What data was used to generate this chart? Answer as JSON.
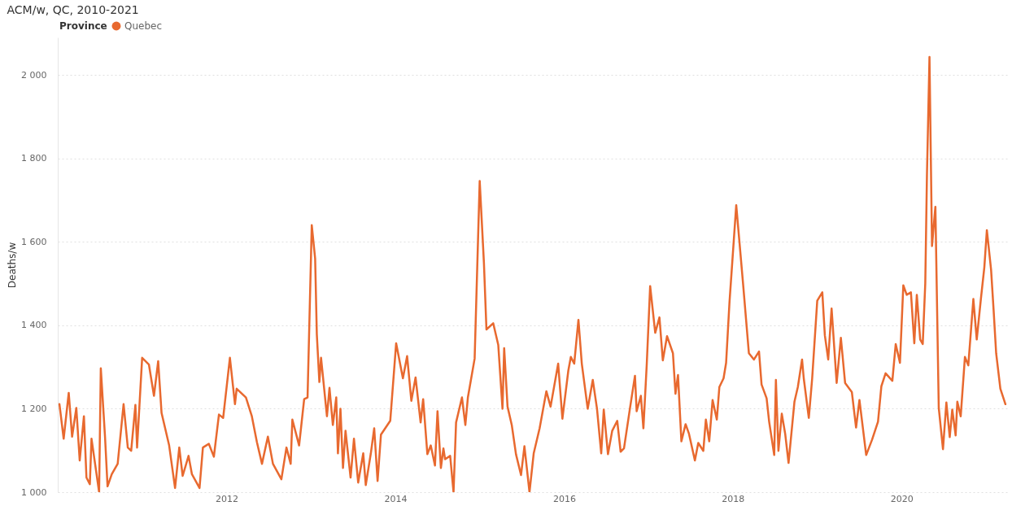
{
  "chart_data": {
    "type": "line",
    "title": "ACM/w, QC, 2010-2021",
    "ylabel": "Deaths/w",
    "legend_title": "Province",
    "legend": "top left",
    "grid": "y",
    "line_style": "solid",
    "marker": "none",
    "xlim": [
      2010,
      2021.25
    ],
    "xticks": [
      2012,
      2014,
      2016,
      2018,
      2020
    ],
    "ylim": [
      1000,
      2090
    ],
    "yticks": [
      {
        "value": 1000,
        "label": "1 000"
      },
      {
        "value": 1200,
        "label": "1 200"
      },
      {
        "value": 1400,
        "label": "1 400"
      },
      {
        "value": 1600,
        "label": "1 600"
      },
      {
        "value": 1800,
        "label": "1 800"
      },
      {
        "value": 2000,
        "label": "2 000"
      }
    ],
    "series": [
      {
        "name": "Quebec",
        "color": "#e8692f",
        "x": [
          2010.02,
          2010.07,
          2010.13,
          2010.17,
          2010.22,
          2010.26,
          2010.31,
          2010.34,
          2010.38,
          2010.4,
          2010.49,
          2010.51,
          2010.56,
          2010.59,
          2010.64,
          2010.71,
          2010.78,
          2010.83,
          2010.87,
          2010.92,
          2010.94,
          2011.0,
          2011.08,
          2011.14,
          2011.19,
          2011.23,
          2011.32,
          2011.39,
          2011.44,
          2011.48,
          2011.55,
          2011.59,
          2011.68,
          2011.72,
          2011.79,
          2011.85,
          2011.91,
          2011.96,
          2012.04,
          2012.1,
          2012.12,
          2012.23,
          2012.3,
          2012.36,
          2012.42,
          2012.49,
          2012.55,
          2012.65,
          2012.71,
          2012.76,
          2012.78,
          2012.86,
          2012.92,
          2012.96,
          2013.01,
          2013.05,
          2013.07,
          2013.1,
          2013.12,
          2013.19,
          2013.22,
          2013.26,
          2013.3,
          2013.32,
          2013.35,
          2013.38,
          2013.41,
          2013.47,
          2013.51,
          2013.56,
          2013.62,
          2013.65,
          2013.71,
          2013.75,
          2013.79,
          2013.83,
          2013.94,
          2014.01,
          2014.09,
          2014.14,
          2014.19,
          2014.24,
          2014.3,
          2014.33,
          2014.38,
          2014.42,
          2014.47,
          2014.5,
          2014.54,
          2014.57,
          2014.59,
          2014.65,
          2014.69,
          2014.72,
          2014.79,
          2014.83,
          2014.86,
          2014.94,
          2015.0,
          2015.05,
          2015.08,
          2015.16,
          2015.22,
          2015.27,
          2015.29,
          2015.33,
          2015.38,
          2015.43,
          2015.49,
          2015.53,
          2015.59,
          2015.64,
          2015.71,
          2015.79,
          2015.84,
          2015.93,
          2015.98,
          2016.05,
          2016.08,
          2016.12,
          2016.17,
          2016.21,
          2016.28,
          2016.34,
          2016.39,
          2016.44,
          2016.47,
          2016.52,
          2016.57,
          2016.63,
          2016.67,
          2016.71,
          2016.78,
          2016.84,
          2016.86,
          2016.91,
          2016.94,
          2016.98,
          2017.02,
          2017.08,
          2017.13,
          2017.17,
          2017.22,
          2017.29,
          2017.32,
          2017.35,
          2017.39,
          2017.44,
          2017.48,
          2017.55,
          2017.59,
          2017.65,
          2017.68,
          2017.72,
          2017.76,
          2017.81,
          2017.84,
          2017.89,
          2017.92,
          2017.96,
          2018.04,
          2018.08,
          2018.12,
          2018.19,
          2018.25,
          2018.31,
          2018.34,
          2018.4,
          2018.43,
          2018.49,
          2018.51,
          2018.54,
          2018.58,
          2018.62,
          2018.66,
          2018.73,
          2018.77,
          2018.82,
          2018.84,
          2018.9,
          2018.94,
          2019.0,
          2019.06,
          2019.09,
          2019.13,
          2019.17,
          2019.23,
          2019.28,
          2019.33,
          2019.41,
          2019.46,
          2019.5,
          2019.58,
          2019.65,
          2019.72,
          2019.76,
          2019.81,
          2019.89,
          2019.93,
          2019.98,
          2020.02,
          2020.06,
          2020.11,
          2020.15,
          2020.18,
          2020.22,
          2020.25,
          2020.28,
          2020.3,
          2020.33,
          2020.36,
          2020.4,
          2020.44,
          2020.49,
          2020.53,
          2020.57,
          2020.6,
          2020.64,
          2020.66,
          2020.7,
          2020.75,
          2020.79,
          2020.85,
          2020.89,
          2020.94,
          2020.98,
          2021.01,
          2021.06,
          2021.09,
          2021.12,
          2021.17,
          2021.23
        ],
        "values": [
          1211,
          1128,
          1238,
          1133,
          1202,
          1076,
          1182,
          1035,
          1019,
          1128,
          1000,
          1297,
          1133,
          1014,
          1043,
          1068,
          1211,
          1107,
          1099,
          1209,
          1107,
          1322,
          1306,
          1231,
          1314,
          1190,
          1112,
          1010,
          1107,
          1039,
          1087,
          1043,
          1010,
          1107,
          1116,
          1085,
          1186,
          1178,
          1322,
          1211,
          1248,
          1227,
          1182,
          1120,
          1068,
          1133,
          1068,
          1031,
          1107,
          1068,
          1174,
          1112,
          1223,
          1227,
          1640,
          1560,
          1378,
          1264,
          1322,
          1182,
          1250,
          1161,
          1227,
          1093,
          1200,
          1058,
          1147,
          1035,
          1128,
          1023,
          1093,
          1017,
          1093,
          1153,
          1027,
          1138,
          1171,
          1357,
          1273,
          1326,
          1219,
          1275,
          1167,
          1223,
          1091,
          1112,
          1064,
          1194,
          1058,
          1105,
          1079,
          1087,
          1000,
          1167,
          1227,
          1161,
          1227,
          1320,
          1746,
          1550,
          1390,
          1405,
          1353,
          1200,
          1345,
          1205,
          1161,
          1091,
          1041,
          1110,
          1000,
          1093,
          1153,
          1242,
          1205,
          1308,
          1176,
          1291,
          1324,
          1308,
          1413,
          1308,
          1200,
          1269,
          1200,
          1093,
          1198,
          1091,
          1147,
          1171,
          1097,
          1105,
          1200,
          1279,
          1194,
          1231,
          1153,
          1308,
          1494,
          1382,
          1419,
          1316,
          1374,
          1333,
          1236,
          1281,
          1122,
          1163,
          1140,
          1076,
          1118,
          1099,
          1174,
          1122,
          1221,
          1174,
          1252,
          1273,
          1310,
          1455,
          1688,
          1595,
          1502,
          1333,
          1318,
          1337,
          1258,
          1225,
          1169,
          1089,
          1269,
          1099,
          1188,
          1140,
          1070,
          1217,
          1252,
          1318,
          1273,
          1178,
          1273,
          1459,
          1479,
          1376,
          1318,
          1440,
          1262,
          1370,
          1262,
          1240,
          1155,
          1221,
          1089,
          1126,
          1169,
          1254,
          1285,
          1267,
          1355,
          1310,
          1496,
          1473,
          1479,
          1357,
          1473,
          1366,
          1355,
          1500,
          1760,
          2043,
          1590,
          1684,
          1202,
          1103,
          1215,
          1132,
          1198,
          1136,
          1217,
          1182,
          1324,
          1304,
          1463,
          1366,
          1465,
          1539,
          1628,
          1533,
          1436,
          1333,
          1248,
          1211
        ]
      }
    ]
  }
}
